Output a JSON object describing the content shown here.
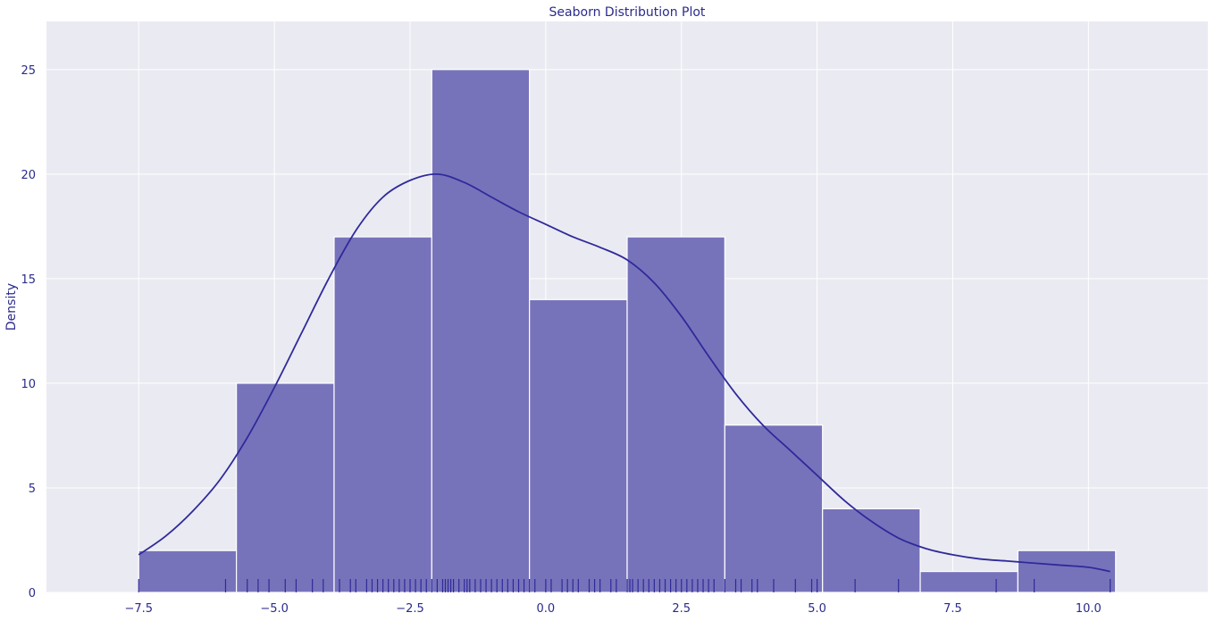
{
  "chart_data": {
    "type": "bar",
    "title": "Seaborn Distribution Plot",
    "xlabel": "",
    "ylabel": "Density",
    "xlim": [
      -9.2,
      12.2
    ],
    "ylim": [
      0,
      27.3
    ],
    "xticks": [
      -7.5,
      -5.0,
      -2.5,
      0.0,
      2.5,
      5.0,
      7.5,
      10.0
    ],
    "xtick_labels": [
      "−7.5",
      "−5.0",
      "−2.5",
      "0.0",
      "2.5",
      "5.0",
      "7.5",
      "10.0"
    ],
    "yticks": [
      0,
      5,
      10,
      15,
      20,
      25
    ],
    "ytick_labels": [
      "0",
      "5",
      "10",
      "15",
      "20",
      "25"
    ],
    "grid": true,
    "bins": [
      {
        "x0": -7.5,
        "x1": -5.7,
        "count": 2
      },
      {
        "x0": -5.7,
        "x1": -3.9,
        "count": 10
      },
      {
        "x0": -3.9,
        "x1": -2.1,
        "count": 17
      },
      {
        "x0": -2.1,
        "x1": -0.3,
        "count": 25
      },
      {
        "x0": -0.3,
        "x1": 1.5,
        "count": 14
      },
      {
        "x0": 1.5,
        "x1": 3.3,
        "count": 17
      },
      {
        "x0": 3.3,
        "x1": 5.1,
        "count": 8
      },
      {
        "x0": 5.1,
        "x1": 6.9,
        "count": 4
      },
      {
        "x0": 6.9,
        "x1": 8.7,
        "count": 1
      },
      {
        "x0": 8.7,
        "x1": 10.5,
        "count": 2
      }
    ],
    "kde": {
      "x": [
        -7.5,
        -7.0,
        -6.5,
        -6.0,
        -5.5,
        -5.0,
        -4.5,
        -4.0,
        -3.5,
        -3.0,
        -2.5,
        -2.0,
        -1.5,
        -1.0,
        -0.5,
        0.0,
        0.5,
        1.0,
        1.5,
        2.0,
        2.5,
        3.0,
        3.5,
        4.0,
        4.5,
        5.0,
        5.5,
        6.0,
        6.5,
        7.0,
        7.5,
        8.0,
        8.5,
        9.0,
        9.5,
        10.0,
        10.4
      ],
      "y": [
        1.8,
        2.7,
        3.9,
        5.4,
        7.4,
        9.8,
        12.4,
        15.0,
        17.3,
        18.9,
        19.7,
        20.0,
        19.6,
        18.9,
        18.2,
        17.6,
        17.0,
        16.5,
        15.9,
        14.8,
        13.2,
        11.3,
        9.5,
        8.0,
        6.8,
        5.6,
        4.4,
        3.4,
        2.6,
        2.1,
        1.8,
        1.6,
        1.5,
        1.4,
        1.3,
        1.2,
        1.0
      ]
    },
    "rug": [
      -7.5,
      -5.9,
      -5.5,
      -5.3,
      -5.1,
      -4.8,
      -4.6,
      -4.3,
      -4.1,
      -3.8,
      -3.6,
      -3.5,
      -3.3,
      -3.2,
      -3.1,
      -3.0,
      -2.9,
      -2.8,
      -2.7,
      -2.6,
      -2.5,
      -2.4,
      -2.3,
      -2.2,
      -2.1,
      -2.0,
      -1.9,
      -1.85,
      -1.8,
      -1.75,
      -1.7,
      -1.6,
      -1.5,
      -1.45,
      -1.4,
      -1.3,
      -1.2,
      -1.1,
      -1.0,
      -0.9,
      -0.8,
      -0.7,
      -0.6,
      -0.5,
      -0.4,
      -0.3,
      -0.2,
      0.0,
      0.1,
      0.3,
      0.4,
      0.5,
      0.6,
      0.8,
      0.9,
      1.0,
      1.2,
      1.3,
      1.5,
      1.55,
      1.6,
      1.7,
      1.8,
      1.9,
      2.0,
      2.1,
      2.2,
      2.3,
      2.4,
      2.5,
      2.6,
      2.7,
      2.8,
      2.9,
      3.0,
      3.1,
      3.3,
      3.5,
      3.6,
      3.8,
      3.9,
      4.2,
      4.6,
      4.9,
      5.0,
      5.7,
      6.5,
      8.3,
      9.0,
      10.4
    ],
    "colors": {
      "background": "#eaeaf2",
      "grid": "#ffffff",
      "bar_fill": "#7773bb",
      "bar_edge": "#ffffff",
      "line": "#2f2a9a",
      "text": "#2b2b8c"
    }
  }
}
